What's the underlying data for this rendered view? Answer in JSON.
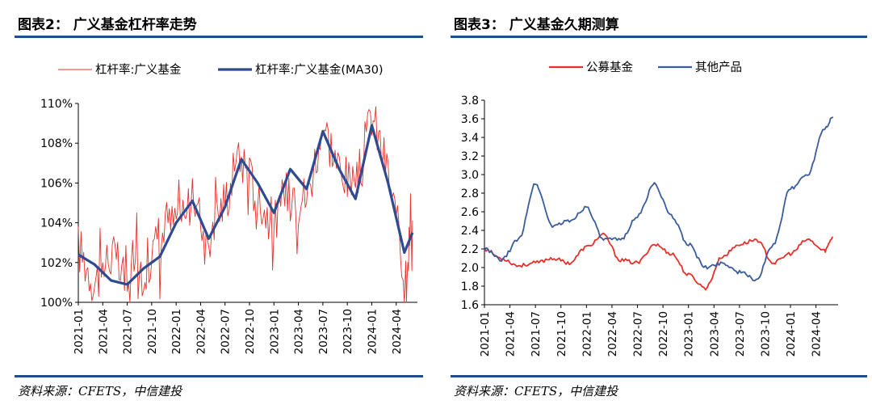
{
  "left": {
    "title": "图表2：  广义基金杠杆率走势",
    "source": "资料来源：CFETS，中信建投",
    "chart_data": {
      "type": "line",
      "title": "图表2：  广义基金杠杆率走势",
      "legend_position": "top",
      "grid": false,
      "ylim": [
        100,
        110
      ],
      "yticks": [
        "100%",
        "102%",
        "104%",
        "106%",
        "108%",
        "110%"
      ],
      "xticks": [
        "2021-01",
        "2021-04",
        "2021-07",
        "2021-10",
        "2022-01",
        "2022-04",
        "2022-07",
        "2022-10",
        "2023-01",
        "2023-04",
        "2023-07",
        "2023-10",
        "2024-01",
        "2024-04"
      ],
      "x": [
        "2021-01",
        "2021-03",
        "2021-05",
        "2021-07",
        "2021-09",
        "2021-11",
        "2022-01",
        "2022-03",
        "2022-05",
        "2022-07",
        "2022-09",
        "2022-11",
        "2023-01",
        "2023-03",
        "2023-05",
        "2023-07",
        "2023-09",
        "2023-11",
        "2024-01",
        "2024-03",
        "2024-05",
        "2024-06"
      ],
      "series": [
        {
          "name": "杠杆率:广义基金",
          "color": "#e8302b",
          "style": "thin",
          "values": [
            102.8,
            101.0,
            102.5,
            100.8,
            101.7,
            103.2,
            104.2,
            105.0,
            103.4,
            105.2,
            107.3,
            105.3,
            103.9,
            106.0,
            105.2,
            109.0,
            106.7,
            105.5,
            109.5,
            106.5,
            101.5,
            104.1
          ]
        },
        {
          "name": "杠杆率:广义基金(MA30)",
          "color": "#2e4b91",
          "style": "thick",
          "values": [
            102.4,
            101.9,
            101.1,
            100.9,
            101.7,
            102.3,
            104.0,
            105.1,
            103.2,
            104.8,
            107.2,
            106.0,
            104.5,
            106.7,
            105.7,
            108.6,
            106.7,
            105.2,
            108.9,
            106.0,
            102.5,
            103.5
          ]
        }
      ]
    }
  },
  "right": {
    "title": "图表3：  广义基金久期测算",
    "source": "资料来源：CFETS，中信建投",
    "chart_data": {
      "type": "line",
      "title": "图表3：  广义基金久期测算",
      "legend_position": "top",
      "grid": false,
      "ylim": [
        1.6,
        3.8
      ],
      "yticks": [
        "1.6",
        "1.8",
        "2.0",
        "2.2",
        "2.4",
        "2.6",
        "2.8",
        "3.0",
        "3.2",
        "3.4",
        "3.6",
        "3.8"
      ],
      "xticks": [
        "2021-01",
        "2021-04",
        "2021-07",
        "2021-10",
        "2022-01",
        "2022-04",
        "2022-07",
        "2022-10",
        "2023-01",
        "2023-04",
        "2023-07",
        "2023-10",
        "2024-01",
        "2024-04"
      ],
      "x": [
        "2021-01",
        "2021-03",
        "2021-05",
        "2021-07",
        "2021-09",
        "2021-11",
        "2022-01",
        "2022-03",
        "2022-05",
        "2022-07",
        "2022-09",
        "2022-11",
        "2023-01",
        "2023-03",
        "2023-05",
        "2023-07",
        "2023-09",
        "2023-11",
        "2024-01",
        "2024-03",
        "2024-05",
        "2024-06"
      ],
      "series": [
        {
          "name": "公募基金",
          "color": "#e8302b",
          "values": [
            2.2,
            2.1,
            2.02,
            2.05,
            2.1,
            2.05,
            2.22,
            2.35,
            2.08,
            2.05,
            2.25,
            2.15,
            1.92,
            1.78,
            2.12,
            2.25,
            2.3,
            2.05,
            2.15,
            2.3,
            2.18,
            2.33
          ]
        },
        {
          "name": "其他产品",
          "color": "#3b5c9c",
          "values": [
            2.2,
            2.08,
            2.3,
            2.9,
            2.45,
            2.5,
            2.65,
            2.3,
            2.3,
            2.55,
            2.9,
            2.55,
            2.25,
            2.0,
            2.05,
            1.95,
            1.87,
            2.25,
            2.85,
            3.0,
            3.5,
            3.62
          ]
        }
      ]
    }
  }
}
